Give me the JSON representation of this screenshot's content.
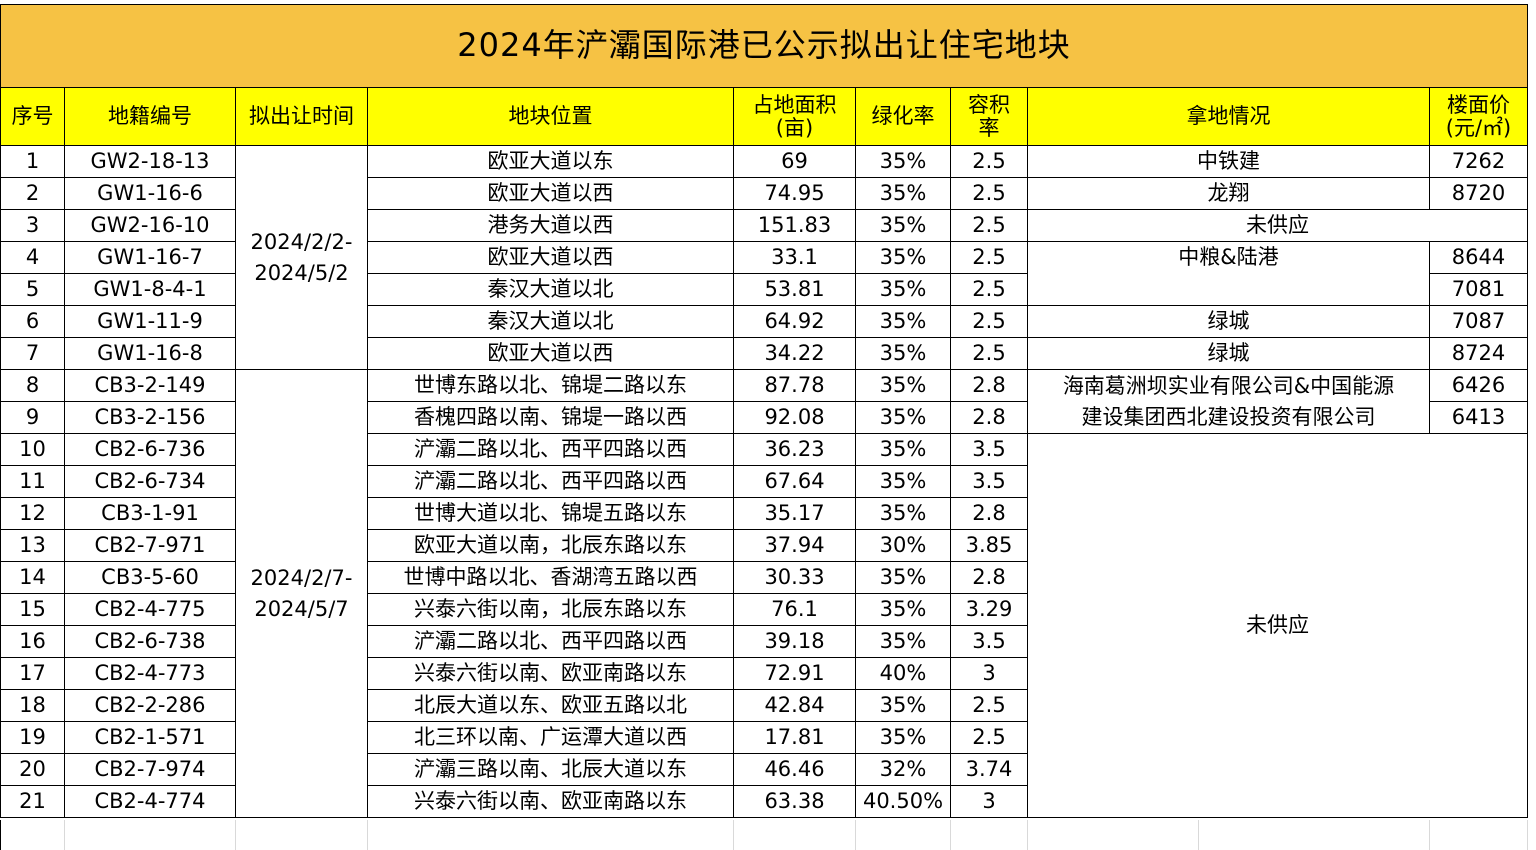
{
  "title": "2024年浐灞国际港已公示拟出让住宅地块",
  "headers": {
    "seq": "序号",
    "code": "地籍编号",
    "time": "拟出让时间",
    "location": "地块位置",
    "area_line1": "占地面积",
    "area_line2": "(亩)",
    "green": "绿化率",
    "far_line1": "容积",
    "far_line2": "率",
    "winner": "拿地情况",
    "price_line1": "楼面价",
    "price_line2": "(元/㎡)"
  },
  "rows": [
    {
      "seq": "1",
      "code": "GW2-18-13",
      "location": "欧亚大道以东",
      "area": "69",
      "green": "35%",
      "far": "2.5"
    },
    {
      "seq": "2",
      "code": "GW1-16-6",
      "location": "欧亚大道以西",
      "area": "74.95",
      "green": "35%",
      "far": "2.5"
    },
    {
      "seq": "3",
      "code": "GW2-16-10",
      "location": "港务大道以西",
      "area": "151.83",
      "green": "35%",
      "far": "2.5"
    },
    {
      "seq": "4",
      "code": "GW1-16-7",
      "location": "欧亚大道以西",
      "area": "33.1",
      "green": "35%",
      "far": "2.5"
    },
    {
      "seq": "5",
      "code": "GW1-8-4-1",
      "location": "秦汉大道以北",
      "area": "53.81",
      "green": "35%",
      "far": "2.5"
    },
    {
      "seq": "6",
      "code": "GW1-11-9",
      "location": "秦汉大道以北",
      "area": "64.92",
      "green": "35%",
      "far": "2.5"
    },
    {
      "seq": "7",
      "code": "GW1-16-8",
      "location": "欧亚大道以西",
      "area": "34.22",
      "green": "35%",
      "far": "2.5"
    },
    {
      "seq": "8",
      "code": "CB3-2-149",
      "location": "世博东路以北、锦堤二路以东",
      "area": "87.78",
      "green": "35%",
      "far": "2.8"
    },
    {
      "seq": "9",
      "code": "CB3-2-156",
      "location": "香槐四路以南、锦堤一路以西",
      "area": "92.08",
      "green": "35%",
      "far": "2.8"
    },
    {
      "seq": "10",
      "code": "CB2-6-736",
      "location": "浐灞二路以北、西平四路以西",
      "area": "36.23",
      "green": "35%",
      "far": "3.5"
    },
    {
      "seq": "11",
      "code": "CB2-6-734",
      "location": "浐灞二路以北、西平四路以西",
      "area": "67.64",
      "green": "35%",
      "far": "3.5"
    },
    {
      "seq": "12",
      "code": "CB3-1-91",
      "location": "世博大道以北、锦堤五路以东",
      "area": "35.17",
      "green": "35%",
      "far": "2.8"
    },
    {
      "seq": "13",
      "code": "CB2-7-971",
      "location": "欧亚大道以南，北辰东路以东",
      "area": "37.94",
      "green": "30%",
      "far": "3.85"
    },
    {
      "seq": "14",
      "code": "CB3-5-60",
      "location": "世博中路以北、香湖湾五路以西",
      "area": "30.33",
      "green": "35%",
      "far": "2.8"
    },
    {
      "seq": "15",
      "code": "CB2-4-775",
      "location": "兴泰六街以南，北辰东路以东",
      "area": "76.1",
      "green": "35%",
      "far": "3.29"
    },
    {
      "seq": "16",
      "code": "CB2-6-738",
      "location": "浐灞二路以北、西平四路以西",
      "area": "39.18",
      "green": "35%",
      "far": "3.5"
    },
    {
      "seq": "17",
      "code": "CB2-4-773",
      "location": "兴泰六街以南、欧亚南路以东",
      "area": "72.91",
      "green": "40%",
      "far": "3"
    },
    {
      "seq": "18",
      "code": "CB2-2-286",
      "location": "北辰大道以东、欧亚五路以北",
      "area": "42.84",
      "green": "35%",
      "far": "2.5"
    },
    {
      "seq": "19",
      "code": "CB2-1-571",
      "location": "北三环以南、广运潭大道以西",
      "area": "17.81",
      "green": "35%",
      "far": "2.5"
    },
    {
      "seq": "20",
      "code": "CB2-7-974",
      "location": "浐灞三路以南、北辰大道以东",
      "area": "46.46",
      "green": "32%",
      "far": "3.74"
    },
    {
      "seq": "21",
      "code": "CB2-4-774",
      "location": "兴泰六街以南、欧亚南路以东",
      "area": "63.38",
      "green": "40.50%",
      "far": "3"
    }
  ],
  "time_groups": [
    {
      "line1": "2024/2/2-",
      "line2": "2024/5/2"
    },
    {
      "line1": "2024/2/7-",
      "line2": "2024/5/7"
    }
  ],
  "winners": {
    "r1": "中铁建",
    "r2": "龙翔",
    "r3": "未供应",
    "r4_5": "中粮&陆港",
    "r6": "绿城",
    "r7": "绿城",
    "r8_9_line1": "海南葛洲坝实业有限公司&中国能源",
    "r8_9_line2": "建设集团西北建设投资有限公司",
    "r10_21": "未供应"
  },
  "prices": {
    "r1": "7262",
    "r2": "8720",
    "r4": "8644",
    "r5": "7081",
    "r6": "7087",
    "r7": "8724",
    "r8": "6426",
    "r9": "6413"
  }
}
